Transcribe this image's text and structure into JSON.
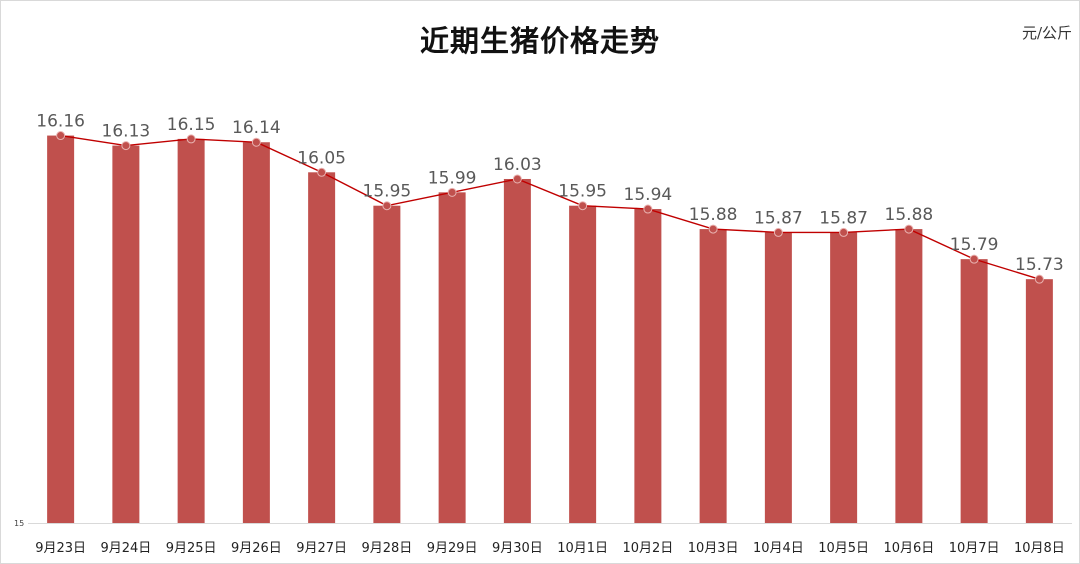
{
  "chart_data": {
    "type": "bar",
    "title": "近期生猪价格走势",
    "unit": "元/公斤",
    "categories": [
      "9月23日",
      "9月24日",
      "9月25日",
      "9月26日",
      "9月27日",
      "9月28日",
      "9月29日",
      "9月30日",
      "10月1日",
      "10月2日",
      "10月3日",
      "10月4日",
      "10月5日",
      "10月6日",
      "10月7日",
      "10月8日"
    ],
    "series": [
      {
        "type": "bar",
        "values": [
          16.16,
          16.13,
          16.15,
          16.14,
          16.05,
          15.95,
          15.99,
          16.03,
          15.95,
          15.94,
          15.88,
          15.87,
          15.87,
          15.88,
          15.79,
          15.73
        ]
      },
      {
        "type": "line",
        "values": [
          16.16,
          16.13,
          16.15,
          16.14,
          16.05,
          15.95,
          15.99,
          16.03,
          15.95,
          15.94,
          15.88,
          15.87,
          15.87,
          15.88,
          15.79,
          15.73
        ]
      }
    ],
    "data_labels": [
      "16.16",
      "16.13",
      "16.15",
      "16.14",
      "16.05",
      "15.95",
      "15.99",
      "16.03",
      "15.95",
      "15.94",
      "15.88",
      "15.87",
      "15.87",
      "15.88",
      "15.79",
      "15.73"
    ],
    "ylim": [
      15,
      16.5
    ],
    "y_ticks": [
      "15"
    ],
    "grid": false,
    "legend": "none",
    "colors": {
      "bar": "#C0504D",
      "line": "#C00000",
      "marker": "#C0504D"
    }
  }
}
